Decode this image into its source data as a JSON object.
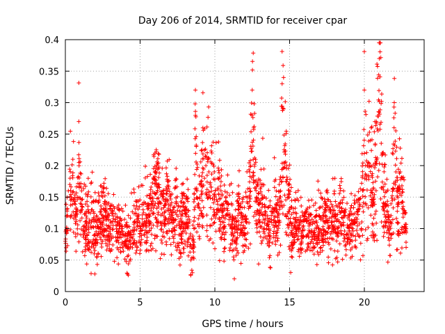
{
  "chart_data": {
    "type": "scatter",
    "title": "Day 206 of 2014, SRMTID for receiver cpar",
    "xlabel": "GPS time / hours",
    "ylabel": "SRMTID / TECUs",
    "xlim": [
      0,
      24
    ],
    "ylim": [
      0,
      0.4
    ],
    "grid": true,
    "legend": "none",
    "marker": "plus",
    "marker_color": "#ff0000",
    "x_ticks": [
      0,
      5,
      10,
      15,
      20
    ],
    "x_tick_labels": [
      "0",
      "5",
      "10",
      "15",
      "20"
    ],
    "y_ticks": [
      0,
      0.05,
      0.1,
      0.15,
      0.2,
      0.25,
      0.3,
      0.35,
      0.4
    ],
    "y_tick_labels": [
      "0",
      "0.05",
      "0.1",
      "0.15",
      "0.2",
      "0.25",
      "0.3",
      "0.35",
      "0.4"
    ],
    "data_range_hours": [
      0,
      22.8
    ],
    "series": [
      {
        "name": "SRMTID",
        "x": [
          0.0,
          0.1,
          0.2,
          0.3,
          0.4,
          0.5,
          0.6,
          0.7,
          0.8,
          0.9,
          1.0,
          1.1,
          1.2,
          1.4,
          1.6,
          1.8,
          2.0,
          2.2,
          2.4,
          2.6,
          2.8,
          3.0,
          3.2,
          3.4,
          3.6,
          3.8,
          4.0,
          4.2,
          4.4,
          4.6,
          4.8,
          5.0,
          5.2,
          5.4,
          5.6,
          5.8,
          6.0,
          6.2,
          6.4,
          6.6,
          6.8,
          7.0,
          7.2,
          7.4,
          7.6,
          7.8,
          8.0,
          8.2,
          8.4,
          8.5,
          8.6,
          8.7,
          8.8,
          9.0,
          9.2,
          9.4,
          9.6,
          9.8,
          10.0,
          10.2,
          10.4,
          10.6,
          10.8,
          11.0,
          11.2,
          11.4,
          11.6,
          11.8,
          12.0,
          12.2,
          12.4,
          12.5,
          12.6,
          12.8,
          13.0,
          13.2,
          13.4,
          13.6,
          13.8,
          14.0,
          14.2,
          14.4,
          14.5,
          14.6,
          14.8,
          15.0,
          15.2,
          15.4,
          15.6,
          15.8,
          16.0,
          16.2,
          16.4,
          16.6,
          16.8,
          17.0,
          17.2,
          17.4,
          17.6,
          17.8,
          18.0,
          18.2,
          18.4,
          18.6,
          18.8,
          19.0,
          19.2,
          19.4,
          19.6,
          19.8,
          20.0,
          20.2,
          20.4,
          20.6,
          20.8,
          21.0,
          21.2,
          21.4,
          21.6,
          21.8,
          22.0,
          22.2,
          22.4,
          22.6,
          22.8
        ],
        "y": [
          0.08,
          0.12,
          0.16,
          0.17,
          0.15,
          0.21,
          0.14,
          0.12,
          0.15,
          0.27,
          0.14,
          0.13,
          0.09,
          0.12,
          0.11,
          0.13,
          0.09,
          0.1,
          0.11,
          0.14,
          0.1,
          0.09,
          0.12,
          0.08,
          0.1,
          0.09,
          0.08,
          0.07,
          0.09,
          0.11,
          0.12,
          0.1,
          0.13,
          0.11,
          0.12,
          0.15,
          0.19,
          0.17,
          0.14,
          0.12,
          0.16,
          0.13,
          0.1,
          0.14,
          0.09,
          0.12,
          0.13,
          0.11,
          0.05,
          0.03,
          0.1,
          0.32,
          0.16,
          0.15,
          0.26,
          0.2,
          0.19,
          0.22,
          0.15,
          0.18,
          0.13,
          0.11,
          0.14,
          0.12,
          0.1,
          0.08,
          0.13,
          0.11,
          0.1,
          0.14,
          0.2,
          0.32,
          0.26,
          0.15,
          0.14,
          0.17,
          0.12,
          0.1,
          0.11,
          0.13,
          0.12,
          0.16,
          0.33,
          0.29,
          0.2,
          0.13,
          0.09,
          0.11,
          0.1,
          0.08,
          0.12,
          0.09,
          0.11,
          0.07,
          0.1,
          0.12,
          0.09,
          0.13,
          0.1,
          0.11,
          0.12,
          0.1,
          0.14,
          0.11,
          0.09,
          0.12,
          0.1,
          0.11,
          0.13,
          0.1,
          0.32,
          0.2,
          0.24,
          0.15,
          0.27,
          0.37,
          0.22,
          0.14,
          0.11,
          0.09,
          0.3,
          0.16,
          0.19,
          0.13,
          0.1
        ]
      }
    ]
  }
}
